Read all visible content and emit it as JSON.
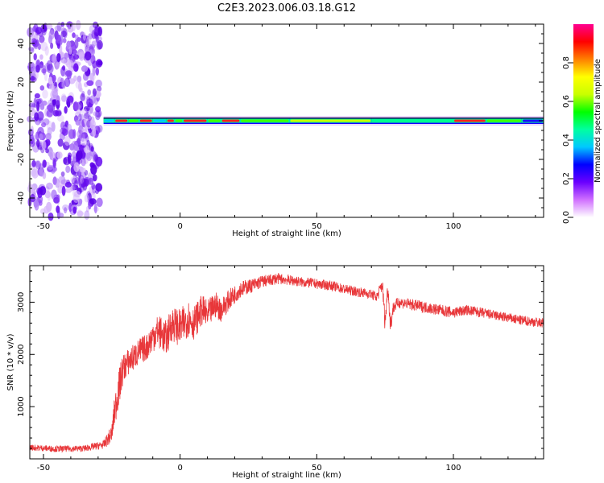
{
  "title": "C2E3.2023.006.03.18.G12",
  "chart_data": [
    {
      "type": "heatmap",
      "xlabel": "Height of straight line (km)",
      "ylabel": "Frequency (Hz)",
      "xlim": [
        -55,
        133
      ],
      "ylim": [
        -50,
        50
      ],
      "xticks": [
        -50,
        0,
        50,
        100
      ],
      "yticks": [
        -40,
        -20,
        0,
        20,
        40
      ],
      "grid": false,
      "noise_region_x": [
        -55,
        -28
      ],
      "line_frequency_hz": 0,
      "colorbar": {
        "label": "Normalized spectral amplitude",
        "range": [
          0,
          1
        ],
        "ticks": [
          "0.0",
          "0.2",
          "0.4",
          "0.6",
          "0.8"
        ],
        "colors": [
          "#ffffff",
          "#d070ff",
          "#6a00ff",
          "#0000ff",
          "#00c8ff",
          "#00ffa0",
          "#00ff00",
          "#c8ff00",
          "#ffff00",
          "#ff8000",
          "#ff0000",
          "#ff0090"
        ]
      },
      "band_segments": [
        {
          "x": [
            -28,
            -24
          ],
          "level": 0.35
        },
        {
          "x": [
            -24,
            -19
          ],
          "level": 0.9
        },
        {
          "x": [
            -19,
            -15
          ],
          "level": 0.6
        },
        {
          "x": [
            -15,
            -10
          ],
          "level": 0.9
        },
        {
          "x": [
            -10,
            -5
          ],
          "level": 0.35
        },
        {
          "x": [
            -5,
            -2
          ],
          "level": 0.9
        },
        {
          "x": [
            -2,
            1
          ],
          "level": 0.6
        },
        {
          "x": [
            1,
            10
          ],
          "level": 0.9
        },
        {
          "x": [
            10,
            15
          ],
          "level": 0.6
        },
        {
          "x": [
            15,
            22
          ],
          "level": 0.9
        },
        {
          "x": [
            22,
            40
          ],
          "level": 0.6
        },
        {
          "x": [
            40,
            70
          ],
          "level": 0.72
        },
        {
          "x": [
            70,
            100
          ],
          "level": 0.55
        },
        {
          "x": [
            100,
            112
          ],
          "level": 0.9
        },
        {
          "x": [
            112,
            125
          ],
          "level": 0.6
        },
        {
          "x": [
            125,
            133
          ],
          "level": 0.3
        }
      ]
    },
    {
      "type": "line",
      "xlabel": "Height of straight line (km)",
      "ylabel": "SNR (10 * v/v)",
      "xlim": [
        -55,
        133
      ],
      "ylim": [
        0,
        3700
      ],
      "xticks": [
        -50,
        0,
        50,
        100
      ],
      "yticks": [
        1000,
        2000,
        3000
      ],
      "grid": false,
      "series": [
        {
          "color": "#e8373a",
          "x": [
            -55,
            -45,
            -35,
            -28,
            -25,
            -24,
            -23,
            -22,
            -21,
            -20,
            -18,
            -15,
            -12,
            -10,
            -8,
            -5,
            -3,
            0,
            3,
            5,
            8,
            10,
            13,
            15,
            18,
            20,
            22,
            25,
            28,
            30,
            33,
            35,
            38,
            40,
            43,
            45,
            48,
            50,
            55,
            60,
            65,
            70,
            72,
            74,
            75,
            76,
            77,
            78,
            80,
            85,
            90,
            95,
            100,
            105,
            110,
            115,
            120,
            125,
            130,
            133
          ],
          "y": [
            220,
            190,
            200,
            270,
            480,
            900,
            1200,
            1450,
            1700,
            1800,
            1900,
            2050,
            2150,
            2350,
            2450,
            2300,
            2600,
            2500,
            2700,
            2600,
            2850,
            2750,
            2950,
            2850,
            3050,
            3150,
            3250,
            3300,
            3350,
            3400,
            3420,
            3450,
            3440,
            3420,
            3400,
            3380,
            3370,
            3350,
            3320,
            3250,
            3200,
            3150,
            3100,
            3350,
            2600,
            3300,
            2550,
            2900,
            3000,
            2950,
            2900,
            2850,
            2800,
            2850,
            2800,
            2750,
            2700,
            2650,
            2620,
            2600
          ],
          "noise_amplitude": [
            60,
            60,
            60,
            80,
            180,
            300,
            350,
            350,
            300,
            260,
            260,
            260,
            260,
            300,
            320,
            340,
            340,
            360,
            360,
            320,
            300,
            280,
            260,
            230,
            200,
            180,
            160,
            140,
            130,
            120,
            110,
            110,
            100,
            100,
            100,
            95,
            95,
            95,
            95,
            95,
            95,
            95,
            100,
            150,
            200,
            150,
            200,
            120,
            110,
            110,
            110,
            110,
            110,
            100,
            100,
            95,
            95,
            95,
            95,
            95
          ]
        }
      ]
    }
  ]
}
